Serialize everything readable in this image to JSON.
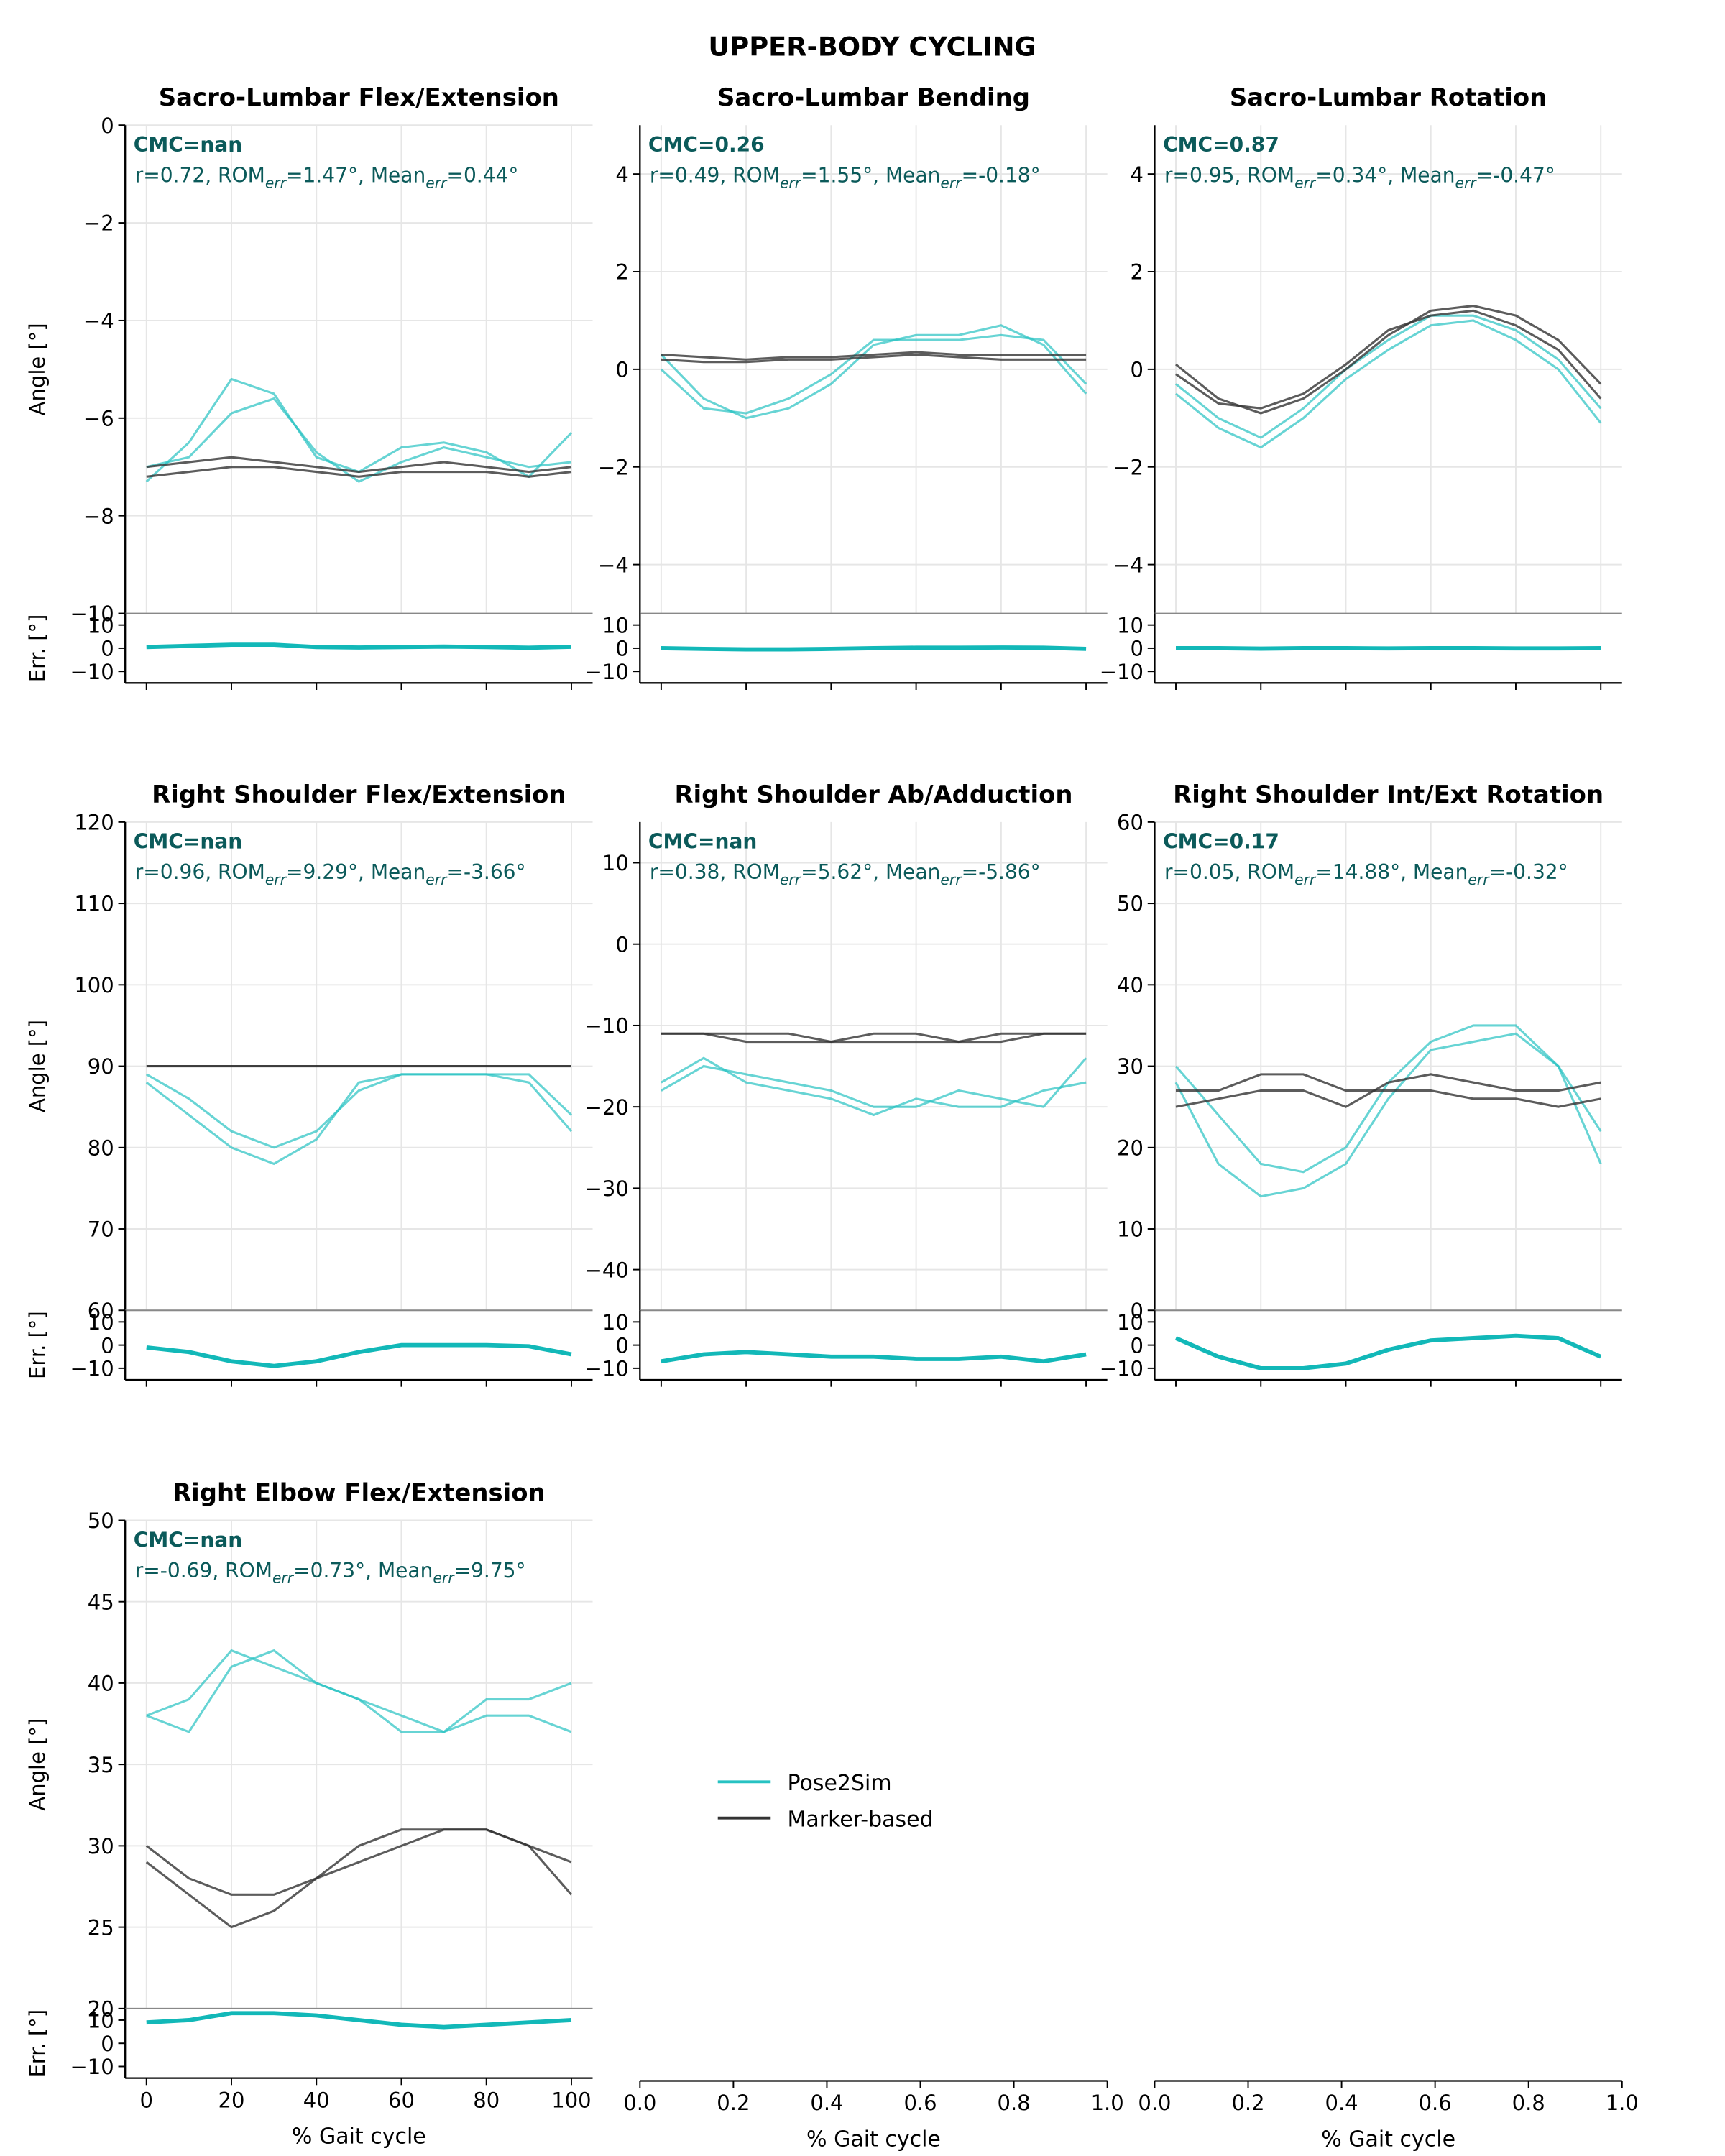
{
  "title": "UPPER-BODY CYCLING",
  "chart_data": [
    {
      "type": "line",
      "title": "Sacro-Lumbar Flex/Extension",
      "cmc": "CMC=nan",
      "stats": [
        "r=0.72, ROM",
        "err",
        "=1.47°, Mean",
        "err",
        "=0.44°"
      ],
      "ylabel": "Angle [°]",
      "x": [
        0,
        10,
        20,
        30,
        40,
        50,
        60,
        70,
        80,
        90,
        100
      ],
      "xlim": [
        -5,
        105
      ],
      "xticks": [
        0,
        20,
        40,
        60,
        80,
        100
      ],
      "ylim": [
        -10,
        0
      ],
      "yticks": [
        {
          "value": -10,
          "label": "−10"
        },
        {
          "value": -8,
          "label": "−8"
        },
        {
          "value": -6,
          "label": "−6"
        },
        {
          "value": -4,
          "label": "−4"
        },
        {
          "value": -2,
          "label": "−2"
        },
        0
      ],
      "grid": true,
      "series": [
        {
          "name": "Pose2Sim",
          "color": "#26c2c2",
          "curves": [
            [
              -7.3,
              -6.5,
              -5.2,
              -5.5,
              -6.8,
              -7.1,
              -6.6,
              -6.5,
              -6.7,
              -7.2,
              -6.3
            ],
            [
              -7.0,
              -6.8,
              -5.9,
              -5.6,
              -6.7,
              -7.3,
              -6.9,
              -6.6,
              -6.8,
              -7.0,
              -6.9
            ]
          ]
        },
        {
          "name": "Marker-based",
          "color": "#333333",
          "curves": [
            [
              -7.0,
              -6.9,
              -6.8,
              -6.9,
              -7.0,
              -7.1,
              -7.0,
              -6.9,
              -7.0,
              -7.1,
              -7.0
            ],
            [
              -7.2,
              -7.1,
              -7.0,
              -7.0,
              -7.1,
              -7.2,
              -7.1,
              -7.1,
              -7.1,
              -7.2,
              -7.1
            ]
          ]
        }
      ],
      "err": {
        "ylabel": "Err. [°]",
        "color": "#12b8b8",
        "ylim": [
          -15,
          15
        ],
        "yticks": [
          {
            "value": -10,
            "label": "−10"
          },
          0,
          10
        ],
        "values": [
          0.5,
          1,
          1.5,
          1.5,
          0.5,
          0.3,
          0.5,
          0.7,
          0.5,
          0.2,
          0.6
        ]
      }
    },
    {
      "type": "line",
      "title": "Sacro-Lumbar Bending",
      "cmc": "CMC=0.26",
      "stats": [
        "r=0.49, ROM",
        "err",
        "=1.55°, Mean",
        "err",
        "=-0.18°"
      ],
      "x": [
        0,
        10,
        20,
        30,
        40,
        50,
        60,
        70,
        80,
        90,
        100
      ],
      "xlim": [
        -5,
        105
      ],
      "xticks": [
        0,
        20,
        40,
        60,
        80,
        100
      ],
      "ylim": [
        -5,
        5
      ],
      "yticks": [
        {
          "value": -4,
          "label": "−4"
        },
        {
          "value": -2,
          "label": "−2"
        },
        0,
        2,
        4
      ],
      "grid": true,
      "series": [
        {
          "name": "Pose2Sim",
          "color": "#26c2c2",
          "curves": [
            [
              0.3,
              -0.6,
              -1.0,
              -0.8,
              -0.3,
              0.5,
              0.7,
              0.7,
              0.9,
              0.5,
              -0.5
            ],
            [
              0.0,
              -0.8,
              -0.9,
              -0.6,
              -0.1,
              0.6,
              0.6,
              0.6,
              0.7,
              0.6,
              -0.3
            ]
          ]
        },
        {
          "name": "Marker-based",
          "color": "#333333",
          "curves": [
            [
              0.3,
              0.25,
              0.2,
              0.25,
              0.25,
              0.3,
              0.35,
              0.3,
              0.3,
              0.3,
              0.3
            ],
            [
              0.2,
              0.15,
              0.15,
              0.2,
              0.2,
              0.25,
              0.3,
              0.25,
              0.2,
              0.2,
              0.2
            ]
          ]
        }
      ],
      "err": {
        "color": "#12b8b8",
        "ylim": [
          -15,
          15
        ],
        "yticks": [
          {
            "value": -10,
            "label": "−10"
          },
          0,
          10
        ],
        "values": [
          0,
          -0.3,
          -0.5,
          -0.5,
          -0.3,
          0,
          0.2,
          0.2,
          0.3,
          0.2,
          -0.3
        ]
      }
    },
    {
      "type": "line",
      "title": "Sacro-Lumbar Rotation",
      "cmc": "CMC=0.87",
      "stats": [
        "r=0.95, ROM",
        "err",
        "=0.34°, Mean",
        "err",
        "=-0.47°"
      ],
      "x": [
        0,
        10,
        20,
        30,
        40,
        50,
        60,
        70,
        80,
        90,
        100
      ],
      "xlim": [
        -5,
        105
      ],
      "xticks": [
        0,
        20,
        40,
        60,
        80,
        100
      ],
      "ylim": [
        -5,
        5
      ],
      "yticks": [
        {
          "value": -4,
          "label": "−4"
        },
        {
          "value": -2,
          "label": "−2"
        },
        0,
        2,
        4
      ],
      "grid": true,
      "series": [
        {
          "name": "Pose2Sim",
          "color": "#26c2c2",
          "curves": [
            [
              -0.5,
              -1.2,
              -1.6,
              -1.0,
              -0.2,
              0.4,
              0.9,
              1.0,
              0.6,
              0.0,
              -1.1
            ],
            [
              -0.3,
              -1.0,
              -1.4,
              -0.8,
              0.0,
              0.6,
              1.1,
              1.1,
              0.8,
              0.2,
              -0.8
            ]
          ]
        },
        {
          "name": "Marker-based",
          "color": "#333333",
          "curves": [
            [
              0.1,
              -0.6,
              -0.9,
              -0.6,
              0.0,
              0.7,
              1.2,
              1.3,
              1.1,
              0.6,
              -0.3
            ],
            [
              -0.1,
              -0.7,
              -0.8,
              -0.5,
              0.1,
              0.8,
              1.1,
              1.2,
              0.9,
              0.4,
              -0.6
            ]
          ]
        }
      ],
      "err": {
        "color": "#12b8b8",
        "ylim": [
          -15,
          15
        ],
        "yticks": [
          {
            "value": -10,
            "label": "−10"
          },
          0,
          10
        ],
        "values": [
          0,
          0,
          -0.2,
          0,
          0,
          -0.1,
          0,
          0,
          -0.1,
          -0.1,
          0
        ]
      }
    },
    {
      "type": "line",
      "title": "Right Shoulder Flex/Extension",
      "cmc": "CMC=nan",
      "stats": [
        "r=0.96, ROM",
        "err",
        "=9.29°, Mean",
        "err",
        "=-3.66°"
      ],
      "ylabel": "Angle [°]",
      "x": [
        0,
        10,
        20,
        30,
        40,
        50,
        60,
        70,
        80,
        90,
        100
      ],
      "xlim": [
        -5,
        105
      ],
      "xticks": [
        0,
        20,
        40,
        60,
        80,
        100
      ],
      "ylim": [
        60,
        120
      ],
      "yticks": [
        60,
        70,
        80,
        90,
        100,
        110,
        120
      ],
      "grid": true,
      "series": [
        {
          "name": "Pose2Sim",
          "color": "#26c2c2",
          "curves": [
            [
              89,
              86,
              82,
              80,
              82,
              87,
              89,
              89,
              89,
              89,
              84
            ],
            [
              88,
              84,
              80,
              78,
              81,
              88,
              89,
              89,
              89,
              88,
              82
            ]
          ]
        },
        {
          "name": "Marker-based",
          "color": "#111111",
          "curves": [
            [
              90,
              90,
              90,
              90,
              90,
              90,
              90,
              90,
              90,
              90,
              90
            ]
          ]
        }
      ],
      "err": {
        "ylabel": "Err. [°]",
        "color": "#12b8b8",
        "ylim": [
          -15,
          15
        ],
        "yticks": [
          {
            "value": -10,
            "label": "−10"
          },
          0,
          10
        ],
        "values": [
          -1,
          -3,
          -7,
          -9,
          -7,
          -3,
          0,
          0,
          0,
          -0.5,
          -4
        ]
      }
    },
    {
      "type": "line",
      "title": "Right Shoulder Ab/Adduction",
      "cmc": "CMC=nan",
      "stats": [
        "r=0.38, ROM",
        "err",
        "=5.62°, Mean",
        "err",
        "=-5.86°"
      ],
      "x": [
        0,
        10,
        20,
        30,
        40,
        50,
        60,
        70,
        80,
        90,
        100
      ],
      "xlim": [
        -5,
        105
      ],
      "xticks": [
        0,
        20,
        40,
        60,
        80,
        100
      ],
      "ylim": [
        -45,
        15
      ],
      "yticks": [
        {
          "value": -40,
          "label": "−40"
        },
        {
          "value": -30,
          "label": "−30"
        },
        {
          "value": -20,
          "label": "−20"
        },
        {
          "value": -10,
          "label": "−10"
        },
        0,
        10
      ],
      "grid": true,
      "series": [
        {
          "name": "Pose2Sim",
          "color": "#26c2c2",
          "curves": [
            [
              -18,
              -15,
              -16,
              -17,
              -18,
              -20,
              -20,
              -18,
              -19,
              -20,
              -14
            ],
            [
              -17,
              -14,
              -17,
              -18,
              -19,
              -21,
              -19,
              -20,
              -20,
              -18,
              -17
            ]
          ]
        },
        {
          "name": "Marker-based",
          "color": "#333333",
          "curves": [
            [
              -11,
              -11,
              -12,
              -12,
              -12,
              -12,
              -12,
              -12,
              -12,
              -11,
              -11
            ],
            [
              -11,
              -11,
              -11,
              -11,
              -12,
              -11,
              -11,
              -12,
              -11,
              -11,
              -11
            ]
          ]
        }
      ],
      "err": {
        "color": "#12b8b8",
        "ylim": [
          -15,
          15
        ],
        "yticks": [
          {
            "value": -10,
            "label": "−10"
          },
          0,
          10
        ],
        "values": [
          -7,
          -4,
          -3,
          -4,
          -5,
          -5,
          -6,
          -6,
          -5,
          -7,
          -4
        ]
      }
    },
    {
      "type": "line",
      "title": "Right Shoulder Int/Ext Rotation",
      "cmc": "CMC=0.17",
      "stats": [
        "r=0.05, ROM",
        "err",
        "=14.88°, Mean",
        "err",
        "=-0.32°"
      ],
      "x": [
        0,
        10,
        20,
        30,
        40,
        50,
        60,
        70,
        80,
        90,
        100
      ],
      "xlim": [
        -5,
        105
      ],
      "xticks": [
        0,
        20,
        40,
        60,
        80,
        100
      ],
      "ylim": [
        0,
        60
      ],
      "yticks": [
        0,
        10,
        20,
        30,
        40,
        50,
        60
      ],
      "grid": true,
      "series": [
        {
          "name": "Pose2Sim",
          "color": "#26c2c2",
          "curves": [
            [
              28,
              18,
              14,
              15,
              18,
              26,
              32,
              33,
              34,
              30,
              18
            ],
            [
              30,
              24,
              18,
              17,
              20,
              28,
              33,
              35,
              35,
              30,
              22
            ]
          ]
        },
        {
          "name": "Marker-based",
          "color": "#333333",
          "curves": [
            [
              27,
              27,
              29,
              29,
              27,
              27,
              27,
              26,
              26,
              25,
              26
            ],
            [
              25,
              26,
              27,
              27,
              25,
              28,
              29,
              28,
              27,
              27,
              28
            ]
          ]
        }
      ],
      "err": {
        "color": "#12b8b8",
        "ylim": [
          -15,
          15
        ],
        "yticks": [
          {
            "value": -10,
            "label": "−10"
          },
          0,
          10
        ],
        "values": [
          3,
          -5,
          -10,
          -10,
          -8,
          -2,
          2,
          3,
          4,
          3,
          -5
        ]
      }
    },
    {
      "type": "line",
      "title": "Right Elbow Flex/Extension",
      "cmc": "CMC=nan",
      "stats": [
        "r=-0.69, ROM",
        "err",
        "=0.73°, Mean",
        "err",
        "=9.75°"
      ],
      "ylabel": "Angle [°]",
      "xlabel": "% Gait cycle",
      "x": [
        0,
        10,
        20,
        30,
        40,
        50,
        60,
        70,
        80,
        90,
        100
      ],
      "xlim": [
        -5,
        105
      ],
      "xticks": [
        0,
        20,
        40,
        60,
        80,
        100
      ],
      "ylim": [
        20,
        50
      ],
      "yticks": [
        20,
        25,
        30,
        35,
        40,
        45,
        50
      ],
      "grid": true,
      "series": [
        {
          "name": "Pose2Sim",
          "color": "#26c2c2",
          "curves": [
            [
              38,
              37,
              41,
              42,
              40,
              39,
              37,
              37,
              38,
              38,
              37
            ],
            [
              38,
              39,
              42,
              41,
              40,
              39,
              38,
              37,
              39,
              39,
              40
            ]
          ]
        },
        {
          "name": "Marker-based",
          "color": "#333333",
          "curves": [
            [
              30,
              28,
              27,
              27,
              28,
              30,
              31,
              31,
              31,
              30,
              27
            ],
            [
              29,
              27,
              25,
              26,
              28,
              29,
              30,
              31,
              31,
              30,
              29
            ]
          ]
        }
      ],
      "err": {
        "ylabel": "Err. [°]",
        "color": "#12b8b8",
        "ylim": [
          -15,
          15
        ],
        "yticks": [
          {
            "value": -10,
            "label": "−10"
          },
          0,
          10
        ],
        "values": [
          9,
          10,
          13,
          13,
          12,
          10,
          8,
          7,
          8,
          9,
          10
        ]
      }
    },
    {
      "type": "empty",
      "xlabel": "% Gait cycle",
      "xlim": [
        0,
        1
      ],
      "xticks": [
        {
          "value": 0,
          "label": "0.0"
        },
        {
          "value": 0.2,
          "label": "0.2"
        },
        {
          "value": 0.4,
          "label": "0.4"
        },
        {
          "value": 0.6,
          "label": "0.6"
        },
        {
          "value": 0.8,
          "label": "0.8"
        },
        {
          "value": 1,
          "label": "1.0"
        }
      ]
    },
    {
      "type": "empty",
      "xlabel": "% Gait cycle",
      "xlim": [
        0,
        1
      ],
      "xticks": [
        {
          "value": 0,
          "label": "0.0"
        },
        {
          "value": 0.2,
          "label": "0.2"
        },
        {
          "value": 0.4,
          "label": "0.4"
        },
        {
          "value": 0.6,
          "label": "0.6"
        },
        {
          "value": 0.8,
          "label": "0.8"
        },
        {
          "value": 1,
          "label": "1.0"
        }
      ]
    }
  ]
}
